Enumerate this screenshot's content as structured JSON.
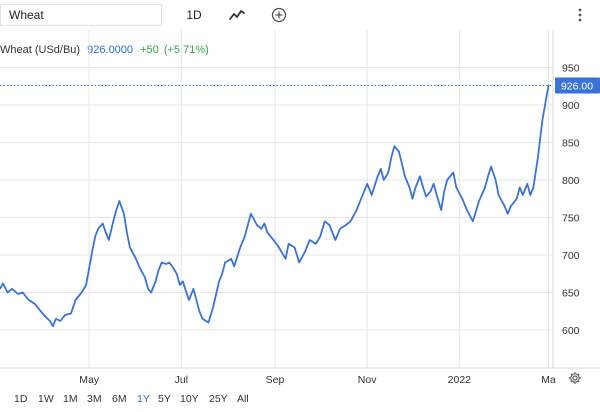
{
  "toolbar": {
    "symbol_value": "Wheat",
    "interval_label": "1D",
    "linetype_icon": "line-chart-icon",
    "add_icon": "plus-circle-icon",
    "more_icon": "vertical-dots-icon"
  },
  "header": {
    "name": "Wheat (USd/Bu)",
    "price": "926.0000",
    "change": "+50",
    "change_pct": "(+5.71%)"
  },
  "last_price_label": "926.00",
  "periods": [
    {
      "label": "1D",
      "active": false
    },
    {
      "label": "1W",
      "active": false
    },
    {
      "label": "1M",
      "active": false
    },
    {
      "label": "3M",
      "active": false
    },
    {
      "label": "6M",
      "active": false
    },
    {
      "label": "1Y",
      "active": true
    },
    {
      "label": "5Y",
      "active": false
    },
    {
      "label": "10Y",
      "active": false
    },
    {
      "label": "25Y",
      "active": false
    },
    {
      "label": "All",
      "active": false
    }
  ],
  "settings_icon": "gear-icon",
  "colors": {
    "line": "#3a72d6",
    "last_price_bg": "#3a72d6",
    "active_period": "#2a6bd3",
    "up": "#36a54a",
    "grid": "#e6e6e6"
  },
  "chart_data": {
    "type": "line",
    "title": "",
    "xlabel": "",
    "ylabel": "",
    "ylim": [
      555,
      965
    ],
    "x_range": [
      "2021-03-03",
      "2022-03-04"
    ],
    "y_ticks": [
      600,
      650,
      700,
      750,
      800,
      850,
      900,
      950
    ],
    "x_ticks": [
      {
        "label": "May",
        "x": "2021-05-01"
      },
      {
        "label": "Jul",
        "x": "2021-07-01"
      },
      {
        "label": "Sep",
        "x": "2021-09-01"
      },
      {
        "label": "Nov",
        "x": "2021-11-01"
      },
      {
        "label": "2022",
        "x": "2022-01-01"
      },
      {
        "label": "Ma",
        "x": "2022-03-01"
      }
    ],
    "grid": true,
    "last_value": 926,
    "series": [
      {
        "values": [
          {
            "x": "2021-03-03",
            "y": 655
          },
          {
            "x": "2021-03-05",
            "y": 662
          },
          {
            "x": "2021-03-08",
            "y": 650
          },
          {
            "x": "2021-03-11",
            "y": 655
          },
          {
            "x": "2021-03-15",
            "y": 648
          },
          {
            "x": "2021-03-18",
            "y": 650
          },
          {
            "x": "2021-03-22",
            "y": 640
          },
          {
            "x": "2021-03-26",
            "y": 635
          },
          {
            "x": "2021-03-30",
            "y": 625
          },
          {
            "x": "2021-04-02",
            "y": 618
          },
          {
            "x": "2021-04-05",
            "y": 612
          },
          {
            "x": "2021-04-07",
            "y": 605
          },
          {
            "x": "2021-04-09",
            "y": 615
          },
          {
            "x": "2021-04-12",
            "y": 612
          },
          {
            "x": "2021-04-15",
            "y": 620
          },
          {
            "x": "2021-04-19",
            "y": 622
          },
          {
            "x": "2021-04-22",
            "y": 640
          },
          {
            "x": "2021-04-26",
            "y": 650
          },
          {
            "x": "2021-04-29",
            "y": 660
          },
          {
            "x": "2021-05-03",
            "y": 705
          },
          {
            "x": "2021-05-05",
            "y": 725
          },
          {
            "x": "2021-05-07",
            "y": 735
          },
          {
            "x": "2021-05-10",
            "y": 742
          },
          {
            "x": "2021-05-12",
            "y": 730
          },
          {
            "x": "2021-05-14",
            "y": 720
          },
          {
            "x": "2021-05-17",
            "y": 745
          },
          {
            "x": "2021-05-19",
            "y": 760
          },
          {
            "x": "2021-05-21",
            "y": 772
          },
          {
            "x": "2021-05-24",
            "y": 755
          },
          {
            "x": "2021-05-26",
            "y": 730
          },
          {
            "x": "2021-05-28",
            "y": 710
          },
          {
            "x": "2021-06-01",
            "y": 695
          },
          {
            "x": "2021-06-03",
            "y": 685
          },
          {
            "x": "2021-06-07",
            "y": 670
          },
          {
            "x": "2021-06-09",
            "y": 655
          },
          {
            "x": "2021-06-11",
            "y": 650
          },
          {
            "x": "2021-06-14",
            "y": 665
          },
          {
            "x": "2021-06-16",
            "y": 680
          },
          {
            "x": "2021-06-18",
            "y": 690
          },
          {
            "x": "2021-06-21",
            "y": 688
          },
          {
            "x": "2021-06-23",
            "y": 690
          },
          {
            "x": "2021-06-25",
            "y": 685
          },
          {
            "x": "2021-06-28",
            "y": 675
          },
          {
            "x": "2021-06-30",
            "y": 660
          },
          {
            "x": "2021-07-02",
            "y": 665
          },
          {
            "x": "2021-07-06",
            "y": 640
          },
          {
            "x": "2021-07-09",
            "y": 655
          },
          {
            "x": "2021-07-13",
            "y": 625
          },
          {
            "x": "2021-07-15",
            "y": 615
          },
          {
            "x": "2021-07-19",
            "y": 610
          },
          {
            "x": "2021-07-22",
            "y": 630
          },
          {
            "x": "2021-07-26",
            "y": 665
          },
          {
            "x": "2021-07-28",
            "y": 675
          },
          {
            "x": "2021-07-30",
            "y": 690
          },
          {
            "x": "2021-08-03",
            "y": 695
          },
          {
            "x": "2021-08-05",
            "y": 685
          },
          {
            "x": "2021-08-09",
            "y": 710
          },
          {
            "x": "2021-08-12",
            "y": 725
          },
          {
            "x": "2021-08-16",
            "y": 755
          },
          {
            "x": "2021-08-18",
            "y": 748
          },
          {
            "x": "2021-08-20",
            "y": 740
          },
          {
            "x": "2021-08-23",
            "y": 735
          },
          {
            "x": "2021-08-25",
            "y": 742
          },
          {
            "x": "2021-08-27",
            "y": 730
          },
          {
            "x": "2021-08-31",
            "y": 720
          },
          {
            "x": "2021-09-03",
            "y": 712
          },
          {
            "x": "2021-09-08",
            "y": 695
          },
          {
            "x": "2021-09-10",
            "y": 715
          },
          {
            "x": "2021-09-14",
            "y": 710
          },
          {
            "x": "2021-09-17",
            "y": 690
          },
          {
            "x": "2021-09-21",
            "y": 705
          },
          {
            "x": "2021-09-24",
            "y": 720
          },
          {
            "x": "2021-09-28",
            "y": 715
          },
          {
            "x": "2021-10-01",
            "y": 725
          },
          {
            "x": "2021-10-04",
            "y": 745
          },
          {
            "x": "2021-10-07",
            "y": 740
          },
          {
            "x": "2021-10-11",
            "y": 720
          },
          {
            "x": "2021-10-14",
            "y": 735
          },
          {
            "x": "2021-10-18",
            "y": 740
          },
          {
            "x": "2021-10-21",
            "y": 745
          },
          {
            "x": "2021-10-25",
            "y": 760
          },
          {
            "x": "2021-10-28",
            "y": 775
          },
          {
            "x": "2021-11-01",
            "y": 795
          },
          {
            "x": "2021-11-04",
            "y": 780
          },
          {
            "x": "2021-11-08",
            "y": 805
          },
          {
            "x": "2021-11-10",
            "y": 815
          },
          {
            "x": "2021-11-12",
            "y": 800
          },
          {
            "x": "2021-11-15",
            "y": 810
          },
          {
            "x": "2021-11-17",
            "y": 830
          },
          {
            "x": "2021-11-19",
            "y": 845
          },
          {
            "x": "2021-11-22",
            "y": 838
          },
          {
            "x": "2021-11-24",
            "y": 822
          },
          {
            "x": "2021-11-26",
            "y": 805
          },
          {
            "x": "2021-11-29",
            "y": 790
          },
          {
            "x": "2021-12-01",
            "y": 775
          },
          {
            "x": "2021-12-03",
            "y": 790
          },
          {
            "x": "2021-12-06",
            "y": 805
          },
          {
            "x": "2021-12-08",
            "y": 790
          },
          {
            "x": "2021-12-10",
            "y": 778
          },
          {
            "x": "2021-12-13",
            "y": 785
          },
          {
            "x": "2021-12-15",
            "y": 795
          },
          {
            "x": "2021-12-17",
            "y": 780
          },
          {
            "x": "2021-12-20",
            "y": 760
          },
          {
            "x": "2021-12-22",
            "y": 785
          },
          {
            "x": "2021-12-24",
            "y": 800
          },
          {
            "x": "2021-12-28",
            "y": 810
          },
          {
            "x": "2021-12-30",
            "y": 790
          },
          {
            "x": "2022-01-03",
            "y": 775
          },
          {
            "x": "2022-01-06",
            "y": 760
          },
          {
            "x": "2022-01-10",
            "y": 745
          },
          {
            "x": "2022-01-12",
            "y": 758
          },
          {
            "x": "2022-01-14",
            "y": 772
          },
          {
            "x": "2022-01-18",
            "y": 790
          },
          {
            "x": "2022-01-20",
            "y": 805
          },
          {
            "x": "2022-01-22",
            "y": 818
          },
          {
            "x": "2022-01-25",
            "y": 800
          },
          {
            "x": "2022-01-27",
            "y": 780
          },
          {
            "x": "2022-01-31",
            "y": 765
          },
          {
            "x": "2022-02-02",
            "y": 755
          },
          {
            "x": "2022-02-04",
            "y": 765
          },
          {
            "x": "2022-02-08",
            "y": 775
          },
          {
            "x": "2022-02-10",
            "y": 790
          },
          {
            "x": "2022-02-12",
            "y": 780
          },
          {
            "x": "2022-02-15",
            "y": 795
          },
          {
            "x": "2022-02-17",
            "y": 780
          },
          {
            "x": "2022-02-19",
            "y": 790
          },
          {
            "x": "2022-02-22",
            "y": 830
          },
          {
            "x": "2022-02-25",
            "y": 880
          },
          {
            "x": "2022-03-01",
            "y": 926
          }
        ]
      }
    ]
  }
}
